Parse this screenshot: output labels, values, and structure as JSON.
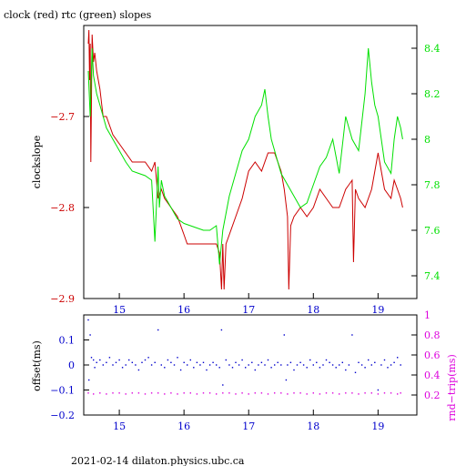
{
  "title": "clock (red) rtc (green) slopes",
  "footer": "2021-02-14  dilaton.physics.ubc.ca",
  "colors": {
    "clock": "#cc0000",
    "rtc": "#00e000",
    "offset": "#0000cc",
    "rndtrip": "#dd00dd",
    "axis": "#000000"
  },
  "chart_data": [
    {
      "type": "line",
      "title": "clock (red) rtc (green) slopes",
      "xlabel": "",
      "ylabel": "clockslope",
      "y2label": "",
      "xlim": [
        14.45,
        19.6
      ],
      "ylim": [
        -2.9,
        -2.6
      ],
      "y2lim": [
        7.3,
        8.5
      ],
      "x_ticks": [
        15,
        16,
        17,
        18,
        19
      ],
      "x_tick_labels": [
        "15",
        "16",
        "17",
        "18",
        "19"
      ],
      "y_ticks": [
        -2.7,
        -2.8,
        -2.9
      ],
      "y_tick_labels": [
        "−2.7",
        "−2.8",
        "−2.9"
      ],
      "y2_ticks": [
        8.4,
        8.2,
        8.0,
        7.8,
        7.6,
        7.4
      ],
      "y2_tick_labels": [
        "8.4",
        "8.2",
        "8",
        "7.8",
        "7.6",
        "7.4"
      ],
      "series": [
        {
          "axis": "left",
          "color": "#cc0000",
          "x": [
            14.52,
            14.53,
            14.54,
            14.55,
            14.56,
            14.58,
            14.6,
            14.62,
            14.65,
            14.7,
            14.75,
            14.8,
            14.9,
            15.0,
            15.1,
            15.2,
            15.3,
            15.4,
            15.5,
            15.55,
            15.6,
            15.65,
            15.7,
            15.8,
            15.9,
            16.0,
            16.05,
            16.1,
            16.2,
            16.3,
            16.4,
            16.5,
            16.55,
            16.58,
            16.6,
            16.62,
            16.65,
            16.7,
            16.8,
            16.9,
            17.0,
            17.1,
            17.2,
            17.3,
            17.4,
            17.5,
            17.55,
            17.6,
            17.62,
            17.65,
            17.7,
            17.8,
            17.9,
            18.0,
            18.1,
            18.2,
            18.3,
            18.4,
            18.45,
            18.5,
            18.6,
            18.62,
            18.65,
            18.7,
            18.8,
            18.9,
            19.0,
            19.1,
            19.2,
            19.25,
            19.3,
            19.35,
            19.38
          ],
          "y": [
            -2.62,
            -2.605,
            -2.66,
            -2.62,
            -2.75,
            -2.61,
            -2.64,
            -2.63,
            -2.65,
            -2.67,
            -2.7,
            -2.7,
            -2.72,
            -2.73,
            -2.74,
            -2.75,
            -2.75,
            -2.75,
            -2.76,
            -2.75,
            -2.79,
            -2.78,
            -2.79,
            -2.8,
            -2.81,
            -2.83,
            -2.84,
            -2.84,
            -2.84,
            -2.84,
            -2.84,
            -2.84,
            -2.85,
            -2.89,
            -2.84,
            -2.89,
            -2.84,
            -2.83,
            -2.81,
            -2.79,
            -2.76,
            -2.75,
            -2.76,
            -2.74,
            -2.74,
            -2.76,
            -2.78,
            -2.81,
            -2.89,
            -2.82,
            -2.81,
            -2.8,
            -2.81,
            -2.8,
            -2.78,
            -2.79,
            -2.8,
            -2.8,
            -2.79,
            -2.78,
            -2.77,
            -2.86,
            -2.78,
            -2.79,
            -2.8,
            -2.78,
            -2.74,
            -2.78,
            -2.79,
            -2.77,
            -2.78,
            -2.79,
            -2.8
          ]
        },
        {
          "axis": "right",
          "color": "#00e000",
          "x": [
            14.52,
            14.55,
            14.58,
            14.6,
            14.65,
            14.7,
            14.8,
            14.9,
            15.0,
            15.1,
            15.2,
            15.3,
            15.4,
            15.5,
            15.55,
            15.6,
            15.62,
            15.65,
            15.7,
            15.8,
            15.9,
            16.0,
            16.1,
            16.2,
            16.3,
            16.4,
            16.5,
            16.55,
            16.6,
            16.7,
            16.8,
            16.9,
            17.0,
            17.1,
            17.2,
            17.25,
            17.3,
            17.35,
            17.4,
            17.5,
            17.6,
            17.7,
            17.8,
            17.9,
            18.0,
            18.1,
            18.2,
            18.3,
            18.4,
            18.5,
            18.6,
            18.7,
            18.8,
            18.85,
            18.9,
            18.95,
            19.0,
            19.1,
            19.2,
            19.25,
            19.3,
            19.35,
            19.38
          ],
          "y": [
            8.3,
            8.1,
            8.4,
            8.28,
            8.2,
            8.15,
            8.05,
            8.0,
            7.95,
            7.9,
            7.86,
            7.85,
            7.84,
            7.82,
            7.55,
            7.88,
            7.7,
            7.82,
            7.75,
            7.7,
            7.65,
            7.63,
            7.62,
            7.61,
            7.6,
            7.6,
            7.62,
            7.45,
            7.6,
            7.75,
            7.85,
            7.95,
            8.0,
            8.1,
            8.15,
            8.22,
            8.1,
            8.0,
            7.95,
            7.85,
            7.8,
            7.75,
            7.7,
            7.72,
            7.8,
            7.88,
            7.92,
            8.0,
            7.85,
            8.1,
            8.0,
            7.95,
            8.2,
            8.4,
            8.25,
            8.15,
            8.1,
            7.9,
            7.85,
            8.0,
            8.1,
            8.05,
            8.0
          ]
        }
      ]
    },
    {
      "type": "scatter",
      "xlabel": "",
      "ylabel": "offset(ms)",
      "y2label": "rnd−trip(ms)",
      "xlim": [
        14.45,
        19.6
      ],
      "ylim": [
        -0.2,
        0.2
      ],
      "y2lim": [
        0.0,
        1.0
      ],
      "x_ticks": [
        15,
        16,
        17,
        18,
        19
      ],
      "x_tick_labels": [
        "15",
        "16",
        "17",
        "18",
        "19"
      ],
      "y_ticks": [
        0.1,
        0,
        -0.1,
        -0.2
      ],
      "y_tick_labels": [
        "0.1",
        "0",
        "−0.1",
        "−0.2"
      ],
      "y2_ticks": [
        1,
        0.8,
        0.6,
        0.4,
        0.2
      ],
      "y2_tick_labels": [
        "1",
        "0.8",
        "0.6",
        "0.4",
        "0.2"
      ],
      "series": [
        {
          "axis": "left",
          "color": "#0000cc",
          "x": [
            14.52,
            14.53,
            14.55,
            14.57,
            14.6,
            14.62,
            14.65,
            14.7,
            14.75,
            14.8,
            14.85,
            14.9,
            14.95,
            15.0,
            15.05,
            15.1,
            15.15,
            15.2,
            15.25,
            15.3,
            15.35,
            15.4,
            15.45,
            15.5,
            15.55,
            15.6,
            15.65,
            15.7,
            15.75,
            15.8,
            15.85,
            15.9,
            15.95,
            16.0,
            16.05,
            16.1,
            16.15,
            16.2,
            16.25,
            16.3,
            16.35,
            16.4,
            16.45,
            16.5,
            16.55,
            16.58,
            16.6,
            16.65,
            16.7,
            16.75,
            16.8,
            16.85,
            16.9,
            16.95,
            17.0,
            17.05,
            17.1,
            17.15,
            17.2,
            17.25,
            17.3,
            17.35,
            17.4,
            17.45,
            17.5,
            17.55,
            17.58,
            17.6,
            17.65,
            17.7,
            17.75,
            17.8,
            17.85,
            17.9,
            17.95,
            18.0,
            18.05,
            18.1,
            18.15,
            18.2,
            18.25,
            18.3,
            18.35,
            18.4,
            18.45,
            18.5,
            18.55,
            18.6,
            18.65,
            18.7,
            18.75,
            18.8,
            18.85,
            18.9,
            18.95,
            19.0,
            19.05,
            19.1,
            19.15,
            19.2,
            19.25,
            19.3,
            19.35
          ],
          "y": [
            0.18,
            -0.06,
            0.12,
            0.03,
            0.02,
            -0.01,
            0.01,
            0.02,
            0.0,
            0.01,
            0.03,
            0.0,
            0.01,
            0.02,
            -0.01,
            0.0,
            0.02,
            0.01,
            0.0,
            -0.02,
            0.01,
            0.02,
            0.03,
            0.0,
            0.01,
            0.14,
            0.0,
            -0.01,
            0.02,
            0.01,
            0.0,
            0.03,
            -0.02,
            0.01,
            0.0,
            0.02,
            -0.01,
            0.01,
            0.0,
            0.01,
            -0.02,
            0.0,
            0.01,
            0.0,
            -0.01,
            0.14,
            -0.08,
            0.02,
            0.0,
            -0.01,
            0.01,
            0.0,
            0.02,
            -0.01,
            0.0,
            0.01,
            -0.02,
            0.0,
            0.01,
            0.0,
            0.02,
            -0.01,
            0.0,
            0.01,
            0.0,
            0.12,
            -0.06,
            0.0,
            0.01,
            -0.02,
            0.0,
            0.01,
            0.0,
            -0.01,
            0.02,
            0.0,
            0.01,
            -0.01,
            0.0,
            0.02,
            0.01,
            0.0,
            -0.01,
            0.0,
            0.01,
            -0.02,
            0.0,
            0.12,
            -0.03,
            0.01,
            0.0,
            -0.01,
            0.02,
            0.0,
            0.01,
            -0.1,
            0.0,
            0.02,
            -0.01,
            0.0,
            0.01,
            0.03,
            0.0
          ]
        },
        {
          "axis": "right",
          "color": "#dd00dd",
          "x": [
            14.52,
            14.6,
            14.7,
            14.8,
            14.9,
            15.0,
            15.1,
            15.2,
            15.3,
            15.4,
            15.5,
            15.6,
            15.7,
            15.8,
            15.9,
            16.0,
            16.1,
            16.2,
            16.3,
            16.4,
            16.5,
            16.6,
            16.7,
            16.8,
            16.9,
            17.0,
            17.1,
            17.2,
            17.3,
            17.4,
            17.5,
            17.6,
            17.7,
            17.8,
            17.9,
            18.0,
            18.1,
            18.2,
            18.3,
            18.4,
            18.5,
            18.6,
            18.7,
            18.8,
            18.9,
            19.0,
            19.1,
            19.2,
            19.3,
            19.35
          ],
          "y": [
            0.22,
            0.21,
            0.22,
            0.21,
            0.22,
            0.22,
            0.21,
            0.22,
            0.22,
            0.21,
            0.22,
            0.22,
            0.21,
            0.22,
            0.21,
            0.22,
            0.22,
            0.21,
            0.22,
            0.22,
            0.21,
            0.22,
            0.22,
            0.21,
            0.22,
            0.21,
            0.22,
            0.22,
            0.21,
            0.22,
            0.22,
            0.21,
            0.22,
            0.22,
            0.21,
            0.22,
            0.21,
            0.22,
            0.22,
            0.21,
            0.22,
            0.22,
            0.21,
            0.22,
            0.22,
            0.21,
            0.22,
            0.22,
            0.21,
            0.22
          ]
        }
      ]
    }
  ]
}
